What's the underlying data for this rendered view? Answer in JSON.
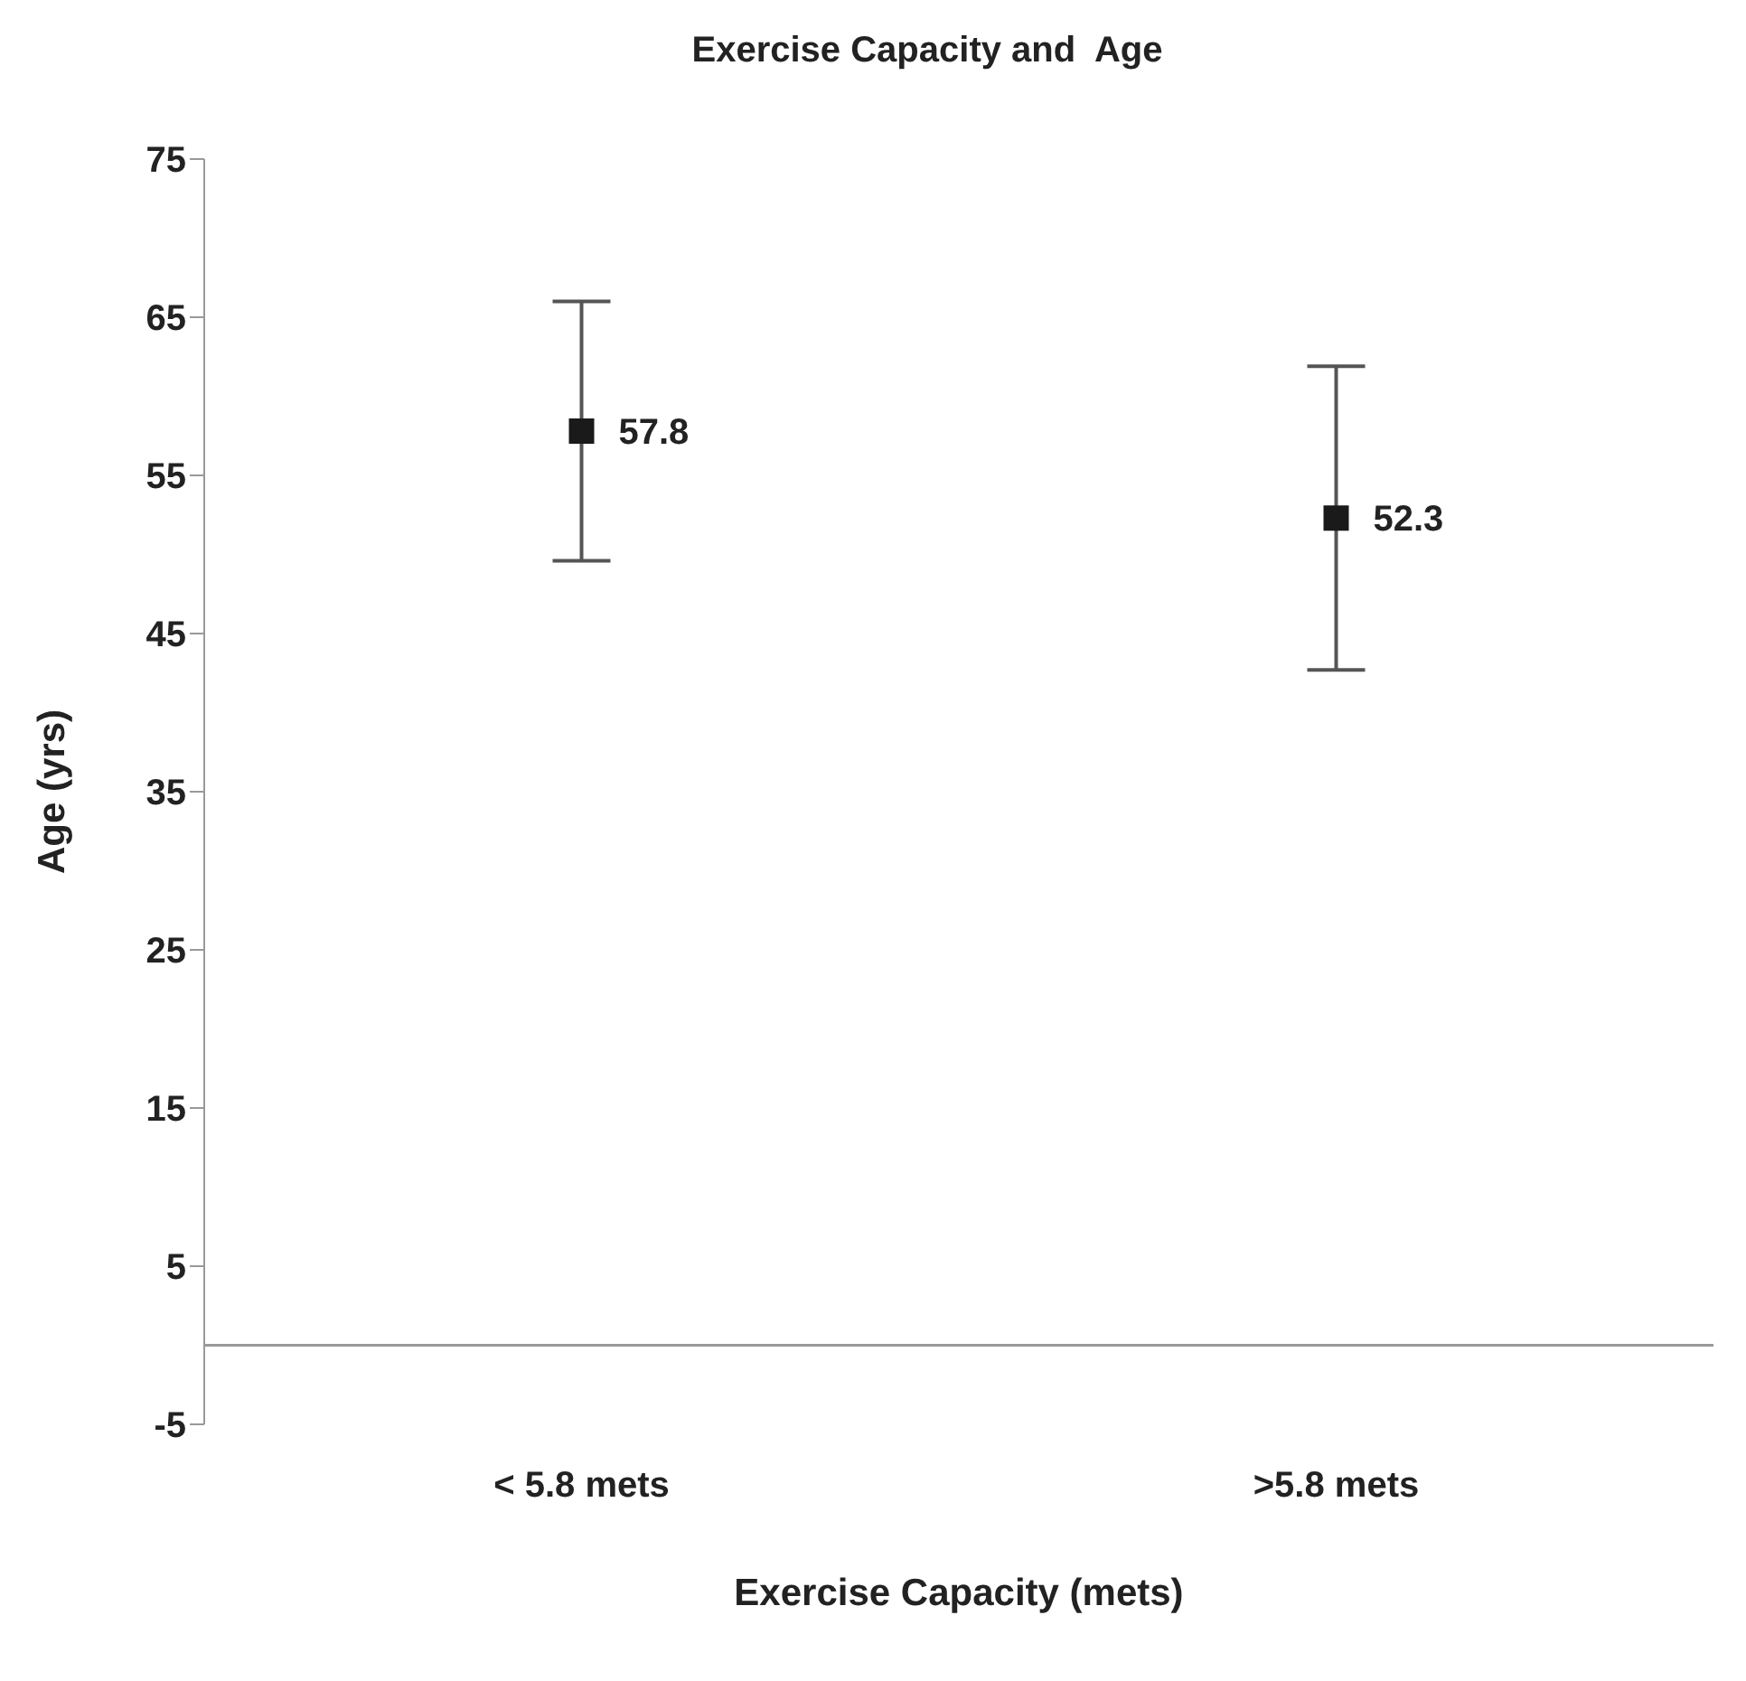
{
  "chart_data": {
    "type": "scatter",
    "title": "Exercise Capacity and  Age",
    "xlabel": "Exercise Capacity (mets)",
    "ylabel": "Age (yrs)",
    "categories": [
      "< 5.8 mets",
      ">5.8 mets"
    ],
    "values": [
      57.8,
      52.3
    ],
    "errors": [
      8.2,
      9.6
    ],
    "color": "#1a1a1a",
    "marker": "square",
    "data_labels": true,
    "ylim": [
      -5,
      75
    ],
    "yticks": [
      -5,
      5,
      15,
      25,
      35,
      45,
      55,
      65,
      75
    ],
    "ref_lines": [
      {
        "axis": "y",
        "value": 0,
        "label": null,
        "color": "#999999"
      }
    ]
  }
}
